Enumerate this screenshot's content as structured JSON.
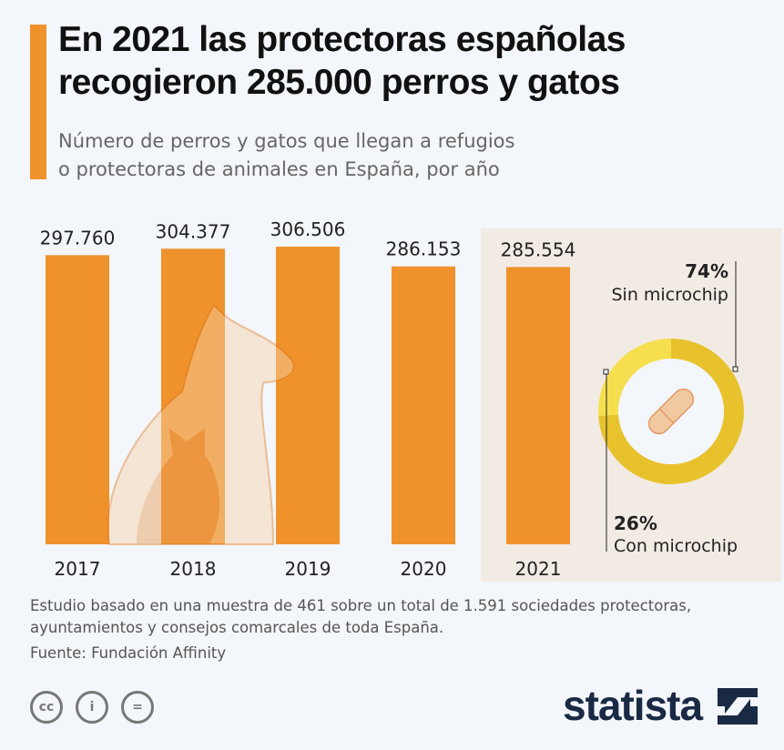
{
  "title": "En 2021 las protectoras españolas recogieron 285.000 perros y gatos",
  "subtitle": "Número de perros y gatos que llegan a refugios o protectoras de animales en España, por año",
  "chart_data": [
    {
      "type": "bar",
      "categories": [
        "2017",
        "2018",
        "2019",
        "2020",
        "2021"
      ],
      "values": [
        297760,
        304377,
        306506,
        286153,
        285554
      ],
      "labels": [
        "297.760",
        "304.377",
        "306.506",
        "286.153",
        "285.554"
      ],
      "ylim": [
        0,
        306506
      ],
      "grid": false,
      "color": "#f0922c"
    },
    {
      "type": "pie",
      "donut": true,
      "slices": [
        {
          "name": "Sin microchip",
          "value": 74,
          "label": "74%",
          "color": "#e8c22c"
        },
        {
          "name": "Con microchip",
          "value": 26,
          "label": "26%",
          "color": "#f6df4f"
        }
      ],
      "icon": "microchip-capsule-icon"
    }
  ],
  "footer": {
    "note": "Estudio basado en una muestra de 461 sobre un total de 1.591 sociedades protectoras, ayuntamientos y consejos comarcales de toda España.",
    "source": "Fuente: Fundación Affinity",
    "brand": "statista",
    "license_icons": [
      "cc-icon",
      "by-icon",
      "nd-icon"
    ]
  }
}
